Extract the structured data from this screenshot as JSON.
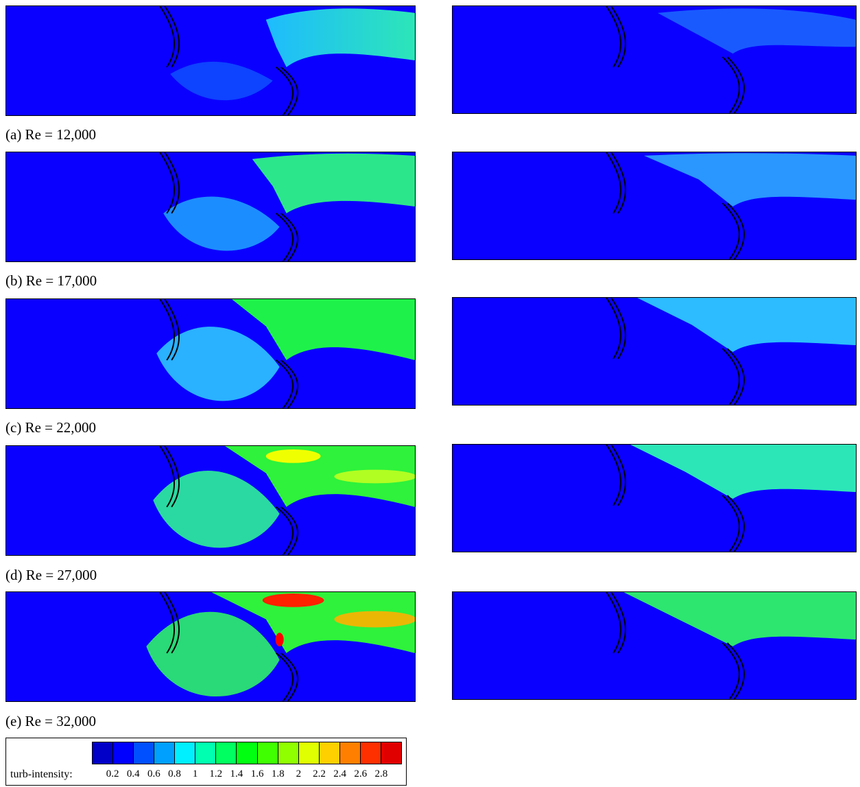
{
  "captions": [
    "(a) Re = 12,000",
    "(b) Re = 17,000",
    "(c) Re = 22,000",
    "(d) Re = 27,000",
    "(e) Re = 32,000"
  ],
  "legend": {
    "label": "turb-intensity:",
    "ticks": [
      "0.2",
      "0.4",
      "0.6",
      "0.8",
      "1",
      "1.2",
      "1.4",
      "1.6",
      "1.8",
      "2",
      "2.2",
      "2.4",
      "2.6",
      "2.8"
    ],
    "colors": [
      "#0000c8",
      "#0000ff",
      "#0050ff",
      "#00a0ff",
      "#00f0ff",
      "#00ffb0",
      "#00ff60",
      "#00ff10",
      "#40ff00",
      "#90ff00",
      "#e0ff00",
      "#ffd000",
      "#ff8000",
      "#ff3000",
      "#e00000"
    ]
  }
}
